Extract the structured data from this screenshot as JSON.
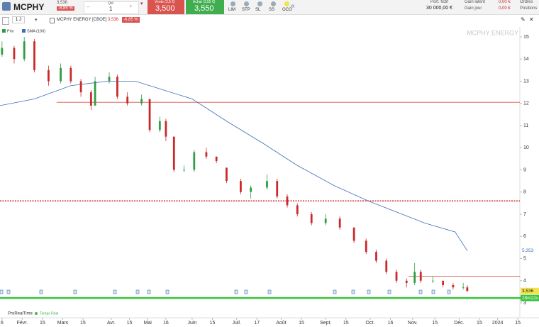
{
  "toolbar": {
    "symbol": "MCPHY",
    "price": "3,536",
    "change": "-6,85 %",
    "qty_label": "Qté",
    "qty": "1",
    "sell_label": "Vente (3,5 €)",
    "sell": "3,500",
    "buy_label": "Achat (3,55 €)",
    "buy": "3,550",
    "order_buttons": [
      "LIM",
      "STP",
      "SL",
      "SS",
      "OCO"
    ],
    "collapse": "«",
    "portfolio_label": "Port. fictif",
    "portfolio": "30 000,00 €",
    "gain_latent_label": "Gain latent",
    "gain_latent": "0,00 €",
    "gain_day_label": "Gain jour",
    "gain_day": "0,00 €",
    "orders": "Ordres",
    "positions": "Positions"
  },
  "chart_header": {
    "interval": "1 J",
    "title": "MCPHY ENERGY [CBOE]",
    "price": "3,536",
    "change": "-6,85 %"
  },
  "footer": {
    "brand": "ProRealTime",
    "status": "Temps Réel"
  },
  "chart_data": {
    "type": "candlestick",
    "watermark": "MCPHY ENERGY",
    "xlim": [
      -1,
      256
    ],
    "xticks": [
      {
        "value": 0,
        "label": "6"
      },
      {
        "value": 10,
        "label": "Févr."
      },
      {
        "value": 20,
        "label": "15"
      },
      {
        "value": 30,
        "label": "Mars"
      },
      {
        "value": 40,
        "label": "15"
      },
      {
        "value": 54,
        "label": "Avr."
      },
      {
        "value": 63,
        "label": "15"
      },
      {
        "value": 72,
        "label": "Mai"
      },
      {
        "value": 81,
        "label": "16"
      },
      {
        "value": 94,
        "label": "Juin"
      },
      {
        "value": 104,
        "label": "15"
      },
      {
        "value": 116,
        "label": "Juil."
      },
      {
        "value": 126,
        "label": "17"
      },
      {
        "value": 138,
        "label": "Août"
      },
      {
        "value": 148,
        "label": "15"
      },
      {
        "value": 160,
        "label": "Sept."
      },
      {
        "value": 170,
        "label": "15"
      },
      {
        "value": 182,
        "label": "Oct."
      },
      {
        "value": 192,
        "label": "16"
      },
      {
        "value": 203,
        "label": "Nov."
      },
      {
        "value": 214,
        "label": "15"
      },
      {
        "value": 226,
        "label": "Déc."
      },
      {
        "value": 236,
        "label": "15"
      },
      {
        "value": 245,
        "label": "2024"
      },
      {
        "value": 255,
        "label": "15"
      }
    ],
    "ylim": [
      2.8,
      15.5
    ],
    "yticks": [
      3,
      4,
      5,
      6,
      7,
      8,
      9,
      10,
      11,
      12,
      13,
      14,
      15
    ],
    "series": [
      {
        "name": "Prix",
        "up_color": "#2f9e44",
        "down_color": "#c92a2a",
        "x": [
          0,
          6,
          11,
          16,
          23,
          29,
          34,
          39,
          44,
          46,
          53,
          57,
          62,
          69,
          73,
          78,
          81,
          85,
          90,
          95,
          101,
          106,
          111,
          118,
          123,
          131,
          136,
          141,
          146,
          153,
          160,
          167,
          174,
          180,
          185,
          190,
          195,
          200,
          204,
          207,
          213,
          218,
          223,
          228,
          230
        ],
        "open": [
          14.2,
          14.5,
          14.0,
          14.8,
          13.5,
          13.0,
          13.6,
          13.0,
          12.5,
          11.9,
          13.0,
          13.2,
          12.3,
          12.0,
          12.2,
          10.8,
          11.2,
          10.5,
          9.0,
          9.0,
          9.8,
          9.6,
          9.1,
          8.5,
          8.0,
          8.2,
          8.5,
          7.8,
          7.4,
          7.0,
          6.6,
          6.8,
          6.4,
          5.8,
          5.3,
          4.9,
          4.4,
          4.0,
          3.9,
          4.4,
          4.0,
          4.0,
          3.8,
          3.7,
          3.7
        ],
        "high": [
          14.8,
          14.6,
          15.0,
          14.9,
          13.7,
          13.8,
          13.7,
          13.1,
          12.6,
          13.2,
          13.4,
          13.3,
          12.5,
          12.4,
          12.2,
          11.4,
          11.3,
          10.5,
          9.2,
          9.9,
          10.0,
          9.6,
          9.1,
          8.6,
          8.3,
          8.8,
          8.6,
          7.9,
          7.5,
          7.1,
          7.0,
          6.9,
          6.4,
          5.9,
          5.4,
          5.0,
          4.5,
          4.1,
          4.8,
          4.5,
          4.2,
          4.0,
          3.9,
          3.9,
          3.8
        ],
        "low": [
          14.1,
          13.8,
          13.9,
          13.4,
          12.8,
          12.9,
          12.9,
          12.3,
          11.7,
          11.9,
          12.9,
          12.2,
          11.9,
          11.9,
          10.7,
          10.7,
          10.3,
          8.9,
          8.9,
          8.9,
          9.5,
          9.3,
          8.4,
          7.9,
          7.7,
          8.1,
          7.7,
          7.3,
          6.9,
          6.5,
          6.5,
          6.3,
          5.7,
          5.2,
          4.8,
          4.3,
          3.9,
          3.7,
          3.8,
          3.9,
          3.9,
          3.7,
          3.6,
          3.6,
          3.5
        ],
        "close": [
          14.5,
          14.0,
          14.8,
          13.5,
          13.0,
          13.6,
          13.0,
          12.5,
          11.9,
          13.0,
          13.2,
          12.3,
          12.0,
          12.2,
          10.8,
          11.2,
          10.5,
          9.0,
          9.0,
          9.8,
          9.6,
          9.4,
          8.5,
          8.0,
          8.2,
          8.5,
          7.8,
          7.4,
          7.0,
          6.6,
          6.8,
          6.4,
          5.8,
          5.3,
          4.9,
          4.4,
          4.0,
          3.9,
          4.4,
          4.0,
          4.0,
          3.8,
          3.7,
          3.7,
          3.536
        ]
      },
      {
        "name": "SMA (100)",
        "color": "#3d6fb5",
        "x": [
          -1,
          16,
          34,
          52,
          66,
          80,
          94,
          111,
          129,
          146,
          164,
          181,
          195,
          209,
          224,
          230
        ],
        "values": [
          11.9,
          12.2,
          12.8,
          13.0,
          13.0,
          12.6,
          12.2,
          11.2,
          10.2,
          9.2,
          8.3,
          7.6,
          7.1,
          6.6,
          6.2,
          5.353
        ]
      }
    ],
    "hlines": [
      {
        "value": 12.05,
        "from": 27,
        "color": "#d9534f",
        "style": "solid"
      },
      {
        "value": 7.6,
        "from": -1,
        "color": "#c92a2a",
        "style": "dotted"
      },
      {
        "value": 4.2,
        "from": 201,
        "color": "#d9534f",
        "style": "solid"
      },
      {
        "value": 3.22,
        "from": -1,
        "color": "#3cc23c",
        "style": "thick"
      }
    ],
    "price_tags": [
      {
        "value": 5.353,
        "label": "5,353",
        "color": "#ffffff",
        "text_color": "#3d6fb5"
      },
      {
        "value": 3.536,
        "label": "3,536",
        "color": "#f2e34a",
        "text_color": "#222222"
      },
      {
        "value": 3.22,
        "label": "28m22s",
        "color": "#3cc23c",
        "text_color": "#ffffff"
      }
    ]
  }
}
